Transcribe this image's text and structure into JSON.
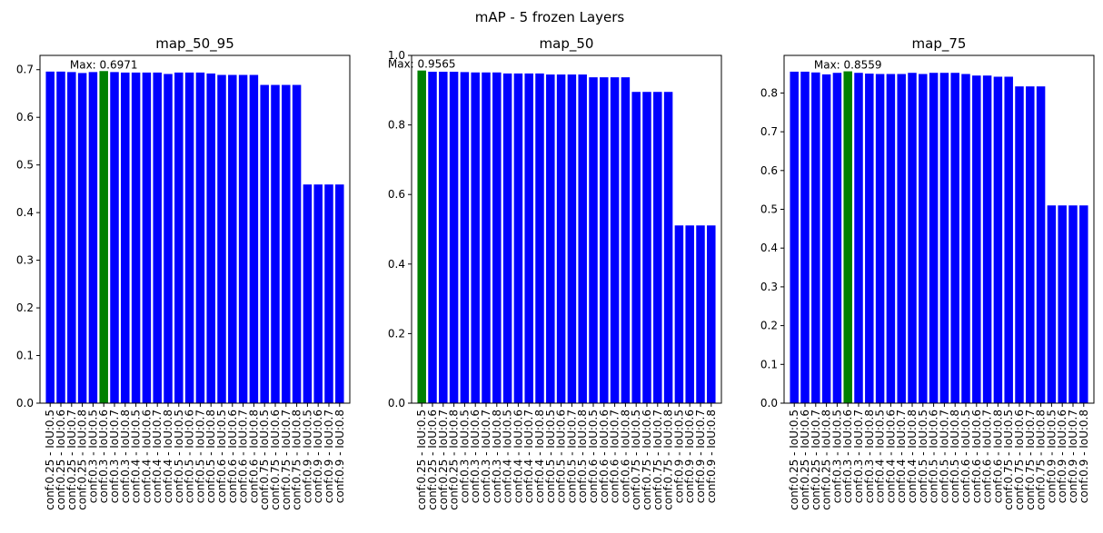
{
  "figure": {
    "suptitle": "mAP - 5 frozen Layers"
  },
  "colors": {
    "bar": "#0000ff",
    "highlight": "#008000",
    "axis": "#000000"
  },
  "chart_data": [
    {
      "type": "bar",
      "title": "map_50_95",
      "ylim": [
        0,
        0.73
      ],
      "yticks": [
        "0.0",
        "0.1",
        "0.2",
        "0.3",
        "0.4",
        "0.5",
        "0.6",
        "0.7"
      ],
      "categories": [
        "conf:0.25 - IoU:0.5",
        "conf:0.25 - IoU:0.6",
        "conf:0.25 - IoU:0.7",
        "conf:0.25 - IoU:0.8",
        "conf:0.3 - IoU:0.5",
        "conf:0.3 - IoU:0.6",
        "conf:0.3 - IoU:0.7",
        "conf:0.3 - IoU:0.8",
        "conf:0.4 - IoU:0.5",
        "conf:0.4 - IoU:0.6",
        "conf:0.4 - IoU:0.7",
        "conf:0.4 - IoU:0.8",
        "conf:0.5 - IoU:0.5",
        "conf:0.5 - IoU:0.6",
        "conf:0.5 - IoU:0.7",
        "conf:0.5 - IoU:0.8",
        "conf:0.6 - IoU:0.5",
        "conf:0.6 - IoU:0.6",
        "conf:0.6 - IoU:0.7",
        "conf:0.6 - IoU:0.8",
        "conf:0.75 - IoU:0.5",
        "conf:0.75 - IoU:0.6",
        "conf:0.75 - IoU:0.7",
        "conf:0.75 - IoU:0.8",
        "conf:0.9 - IoU:0.5",
        "conf:0.9 - IoU:0.6",
        "conf:0.9 - IoU:0.7",
        "conf:0.9 - IoU:0.8"
      ],
      "values": [
        0.696,
        0.696,
        0.695,
        0.693,
        0.695,
        0.6971,
        0.695,
        0.694,
        0.694,
        0.694,
        0.694,
        0.691,
        0.694,
        0.694,
        0.694,
        0.692,
        0.689,
        0.689,
        0.689,
        0.689,
        0.668,
        0.668,
        0.668,
        0.668,
        0.459,
        0.459,
        0.459,
        0.459
      ],
      "highlight_index": 5,
      "annotation": "Max: 0.6971"
    },
    {
      "type": "bar",
      "title": "map_50",
      "ylim": [
        0,
        1.0
      ],
      "yticks": [
        "0.0",
        "0.2",
        "0.4",
        "0.6",
        "0.8",
        "1.0"
      ],
      "categories": [
        "conf:0.25 - IoU:0.5",
        "conf:0.25 - IoU:0.6",
        "conf:0.25 - IoU:0.7",
        "conf:0.25 - IoU:0.8",
        "conf:0.3 - IoU:0.5",
        "conf:0.3 - IoU:0.6",
        "conf:0.3 - IoU:0.7",
        "conf:0.3 - IoU:0.8",
        "conf:0.4 - IoU:0.5",
        "conf:0.4 - IoU:0.6",
        "conf:0.4 - IoU:0.7",
        "conf:0.4 - IoU:0.8",
        "conf:0.5 - IoU:0.5",
        "conf:0.5 - IoU:0.6",
        "conf:0.5 - IoU:0.7",
        "conf:0.5 - IoU:0.8",
        "conf:0.6 - IoU:0.5",
        "conf:0.6 - IoU:0.6",
        "conf:0.6 - IoU:0.7",
        "conf:0.6 - IoU:0.8",
        "conf:0.75 - IoU:0.5",
        "conf:0.75 - IoU:0.6",
        "conf:0.75 - IoU:0.7",
        "conf:0.75 - IoU:0.8",
        "conf:0.9 - IoU:0.5",
        "conf:0.9 - IoU:0.6",
        "conf:0.9 - IoU:0.7",
        "conf:0.9 - IoU:0.8"
      ],
      "values": [
        0.9565,
        0.953,
        0.953,
        0.953,
        0.952,
        0.951,
        0.951,
        0.951,
        0.948,
        0.948,
        0.948,
        0.948,
        0.945,
        0.945,
        0.945,
        0.945,
        0.937,
        0.937,
        0.937,
        0.937,
        0.895,
        0.895,
        0.895,
        0.895,
        0.511,
        0.511,
        0.511,
        0.511
      ],
      "highlight_index": 0,
      "annotation": "Max: 0.9565"
    },
    {
      "type": "bar",
      "title": "map_75",
      "ylim": [
        0,
        0.897
      ],
      "yticks": [
        "0.0",
        "0.1",
        "0.2",
        "0.3",
        "0.4",
        "0.5",
        "0.6",
        "0.7",
        "0.8"
      ],
      "categories": [
        "conf:0.25 - IoU:0.5",
        "conf:0.25 - IoU:0.6",
        "conf:0.25 - IoU:0.7",
        "conf:0.25 - IoU:0.8",
        "conf:0.3 - IoU:0.5",
        "conf:0.3 - IoU:0.6",
        "conf:0.3 - IoU:0.7",
        "conf:0.3 - IoU:0.8",
        "conf:0.4 - IoU:0.5",
        "conf:0.4 - IoU:0.6",
        "conf:0.4 - IoU:0.7",
        "conf:0.4 - IoU:0.8",
        "conf:0.5 - IoU:0.5",
        "conf:0.5 - IoU:0.6",
        "conf:0.5 - IoU:0.7",
        "conf:0.5 - IoU:0.8",
        "conf:0.6 - IoU:0.5",
        "conf:0.6 - IoU:0.6",
        "conf:0.6 - IoU:0.7",
        "conf:0.6 - IoU:0.8",
        "conf:0.75 - IoU:0.5",
        "conf:0.75 - IoU:0.6",
        "conf:0.75 - IoU:0.7",
        "conf:0.75 - IoU:0.8",
        "conf:0.9 - IoU:0.5",
        "conf:0.9 - IoU:0.6",
        "conf:0.9 - IoU:0.7",
        "conf:0.9 - IoU:0.8"
      ],
      "values": [
        0.855,
        0.855,
        0.853,
        0.848,
        0.852,
        0.8559,
        0.852,
        0.85,
        0.849,
        0.849,
        0.849,
        0.852,
        0.849,
        0.852,
        0.852,
        0.852,
        0.849,
        0.845,
        0.845,
        0.842,
        0.842,
        0.817,
        0.817,
        0.817,
        0.51,
        0.51,
        0.51,
        0.51
      ],
      "highlight_index": 5,
      "annotation": "Max: 0.8559"
    }
  ]
}
